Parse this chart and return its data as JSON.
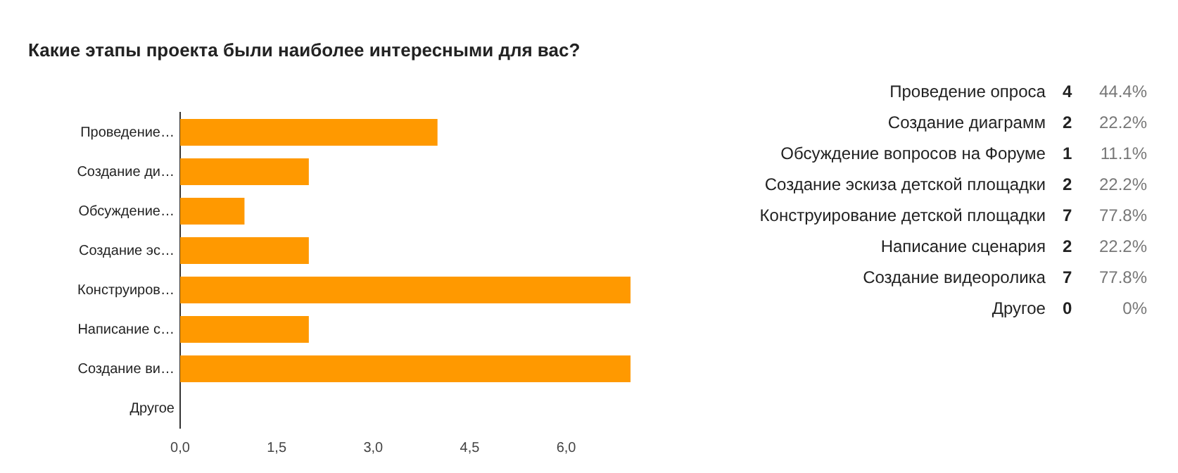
{
  "chart_data": [
    {
      "type": "bar",
      "orientation": "horizontal",
      "title": "Какие этапы проекта были наиболее интересными для вас?",
      "categories": [
        "Проведение…",
        "Создание ди…",
        "Обсуждение…",
        "Создание эс…",
        "Конструиров…",
        "Написание с…",
        "Создание ви…",
        "Другое"
      ],
      "values": [
        4,
        2,
        1,
        2,
        7,
        2,
        7,
        0
      ],
      "color": "#ff9900",
      "xlim": [
        0,
        7
      ],
      "xticks": [
        {
          "value": 0,
          "label": "0,0"
        },
        {
          "value": 1.5,
          "label": "1,5"
        },
        {
          "value": 3,
          "label": "3,0"
        },
        {
          "value": 4.5,
          "label": "4,5"
        },
        {
          "value": 6,
          "label": "6,0"
        }
      ]
    },
    {
      "type": "other",
      "categories": [
        "Проведение опроса",
        "Создание диаграмм",
        "Обсуждение вопросов на Форуме",
        "Создание эскиза детской площадки",
        "Конструирование детской площадки",
        "Написание сценария",
        "Создание видеоролика",
        "Другое"
      ],
      "values": [
        4,
        2,
        1,
        2,
        7,
        2,
        7,
        0
      ],
      "annotations": [
        "44.4%",
        "22.2%",
        "11.1%",
        "22.2%",
        "77.8%",
        "22.2%",
        "77.8%",
        "0%"
      ],
      "data_labels": true
    }
  ]
}
